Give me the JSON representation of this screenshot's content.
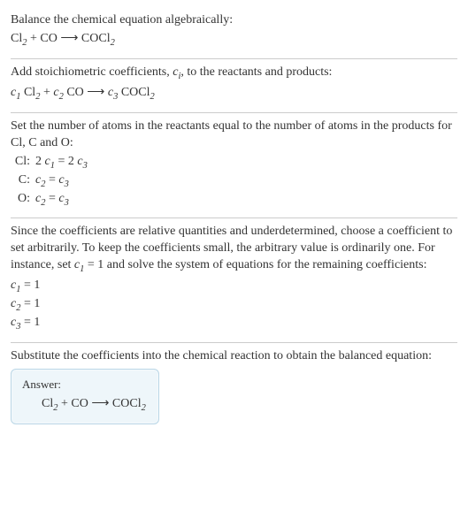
{
  "section1": {
    "intro": "Balance the chemical equation algebraically:",
    "eq_lhs_a": "Cl",
    "eq_lhs_a_sub": "2",
    "plus1": " + CO ",
    "arrow": " ⟶ ",
    "eq_rhs": "COCl",
    "eq_rhs_sub": "2"
  },
  "section2": {
    "intro_a": "Add stoichiometric coefficients, ",
    "ci": "c",
    "ci_sub": "i",
    "intro_b": ", to the reactants and products:",
    "c1": "c",
    "c1_sub": "1",
    "sp1": " Cl",
    "sp1_sub": "2",
    "plus": " + ",
    "c2": "c",
    "c2_sub": "2",
    "sp2": " CO",
    "arrow": " ⟶ ",
    "c3": "c",
    "c3_sub": "3",
    "sp3": " COCl",
    "sp3_sub": "2"
  },
  "section3": {
    "intro": "Set the number of atoms in the reactants equal to the number of atoms in the products for Cl, C and O:",
    "rows": {
      "cl_label": "Cl:",
      "cl_eq_a": "2 ",
      "cl_eq_c1": "c",
      "cl_eq_c1s": "1",
      "cl_eq_mid": " = 2 ",
      "cl_eq_c3": "c",
      "cl_eq_c3s": "3",
      "c_label": "C:",
      "c_eq_c2": "c",
      "c_eq_c2s": "2",
      "c_eq_mid": " = ",
      "c_eq_c3": "c",
      "c_eq_c3s": "3",
      "o_label": "O:",
      "o_eq_c2": "c",
      "o_eq_c2s": "2",
      "o_eq_mid": " = ",
      "o_eq_c3": "c",
      "o_eq_c3s": "3"
    }
  },
  "section4": {
    "intro_a": "Since the coefficients are relative quantities and underdetermined, choose a coefficient to set arbitrarily. To keep the coefficients small, the arbitrary value is ordinarily one. For instance, set ",
    "c1": "c",
    "c1_sub": "1",
    "eq1": " = 1",
    "intro_b": " and solve the system of equations for the remaining coefficients:",
    "line1_c": "c",
    "line1_s": "1",
    "line1_v": " = 1",
    "line2_c": "c",
    "line2_s": "2",
    "line2_v": " = 1",
    "line3_c": "c",
    "line3_s": "3",
    "line3_v": " = 1"
  },
  "section5": {
    "intro": "Substitute the coefficients into the chemical reaction to obtain the balanced equation:",
    "answer_label": "Answer:",
    "eq_lhs_a": "Cl",
    "eq_lhs_a_sub": "2",
    "plus": " + CO ",
    "arrow": " ⟶ ",
    "eq_rhs": "COCl",
    "eq_rhs_sub": "2"
  }
}
